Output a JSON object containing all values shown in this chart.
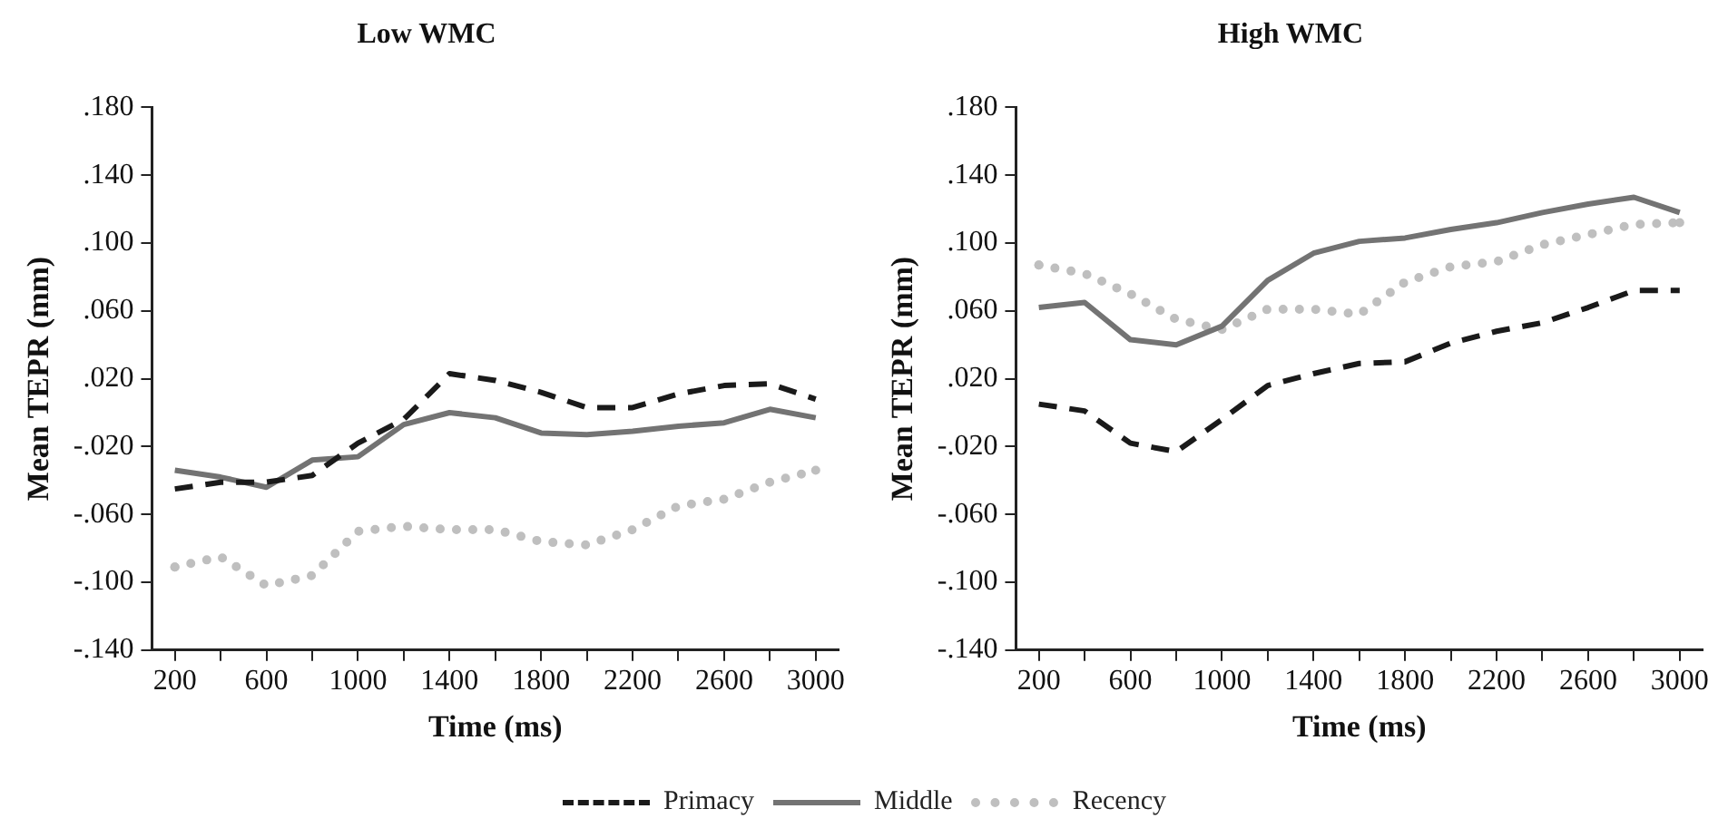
{
  "chart_data": [
    {
      "type": "line",
      "title": "Low WMC",
      "xlabel": "Time (ms)",
      "ylabel": "Mean TEPR (mm)",
      "categories": [
        "200",
        null,
        "600",
        null,
        "1000",
        null,
        "1400",
        null,
        "1800",
        null,
        "2200",
        null,
        "2600",
        null,
        "3000"
      ],
      "series": [
        {
          "name": "Primacy",
          "color": "#1a1a1a",
          "line_style": "dashed",
          "values": [
            -0.045,
            -0.041,
            -0.041,
            -0.037,
            -0.018,
            -0.004,
            0.023,
            0.019,
            0.012,
            0.003,
            0.003,
            0.011,
            0.016,
            0.017,
            0.008
          ]
        },
        {
          "name": "Middle",
          "color": "#737373",
          "line_style": "solid",
          "values": [
            -0.034,
            -0.038,
            -0.044,
            -0.028,
            -0.026,
            -0.007,
            0.0,
            -0.003,
            -0.012,
            -0.013,
            -0.011,
            -0.008,
            -0.006,
            0.002,
            -0.003
          ]
        },
        {
          "name": "Recency",
          "color": "#bfbfbf",
          "line_style": "dotted",
          "values": [
            -0.091,
            -0.085,
            -0.102,
            -0.096,
            -0.07,
            -0.067,
            -0.069,
            -0.069,
            -0.076,
            -0.078,
            -0.069,
            -0.055,
            -0.051,
            -0.041,
            -0.034
          ]
        }
      ],
      "ylim": [
        -0.14,
        0.18
      ],
      "yticks": [
        {
          "value": -0.14,
          "label": "-.140"
        },
        {
          "value": -0.1,
          "label": "-.100"
        },
        {
          "value": -0.06,
          "label": "-.060"
        },
        {
          "value": -0.02,
          "label": "-.020"
        },
        {
          "value": 0.02,
          "label": ".020"
        },
        {
          "value": 0.06,
          "label": ".060"
        },
        {
          "value": 0.1,
          "label": ".100"
        },
        {
          "value": 0.14,
          "label": ".140"
        },
        {
          "value": 0.18,
          "label": ".180"
        }
      ],
      "grid": false,
      "marker": "none",
      "legend": "bottom"
    },
    {
      "type": "line",
      "title": "High WMC",
      "xlabel": "Time (ms)",
      "ylabel": "Mean TEPR (mm)",
      "categories": [
        "200",
        null,
        "600",
        null,
        "1000",
        null,
        "1400",
        null,
        "1800",
        null,
        "2200",
        null,
        "2600",
        null,
        "3000"
      ],
      "series": [
        {
          "name": "Primacy",
          "color": "#1a1a1a",
          "line_style": "dashed",
          "values": [
            0.005,
            0.001,
            -0.018,
            -0.023,
            -0.004,
            0.016,
            0.023,
            0.029,
            0.03,
            0.041,
            0.048,
            0.053,
            0.062,
            0.072,
            0.072
          ]
        },
        {
          "name": "Middle",
          "color": "#737373",
          "line_style": "solid",
          "values": [
            0.062,
            0.065,
            0.043,
            0.04,
            0.051,
            0.078,
            0.094,
            0.101,
            0.103,
            0.108,
            0.112,
            0.118,
            0.123,
            0.127,
            0.118
          ]
        },
        {
          "name": "Recency",
          "color": "#bfbfbf",
          "line_style": "dotted",
          "values": [
            0.087,
            0.082,
            0.07,
            0.055,
            0.049,
            0.061,
            0.061,
            0.058,
            0.077,
            0.086,
            0.089,
            0.099,
            0.105,
            0.111,
            0.112
          ]
        }
      ],
      "ylim": [
        -0.14,
        0.18
      ],
      "yticks": [
        {
          "value": -0.14,
          "label": "-.140"
        },
        {
          "value": -0.1,
          "label": "-.100"
        },
        {
          "value": -0.06,
          "label": "-.060"
        },
        {
          "value": -0.02,
          "label": "-.020"
        },
        {
          "value": 0.02,
          "label": ".020"
        },
        {
          "value": 0.06,
          "label": ".060"
        },
        {
          "value": 0.1,
          "label": ".100"
        },
        {
          "value": 0.14,
          "label": ".140"
        },
        {
          "value": 0.18,
          "label": ".180"
        }
      ],
      "grid": false,
      "marker": "none",
      "legend": "bottom"
    }
  ]
}
